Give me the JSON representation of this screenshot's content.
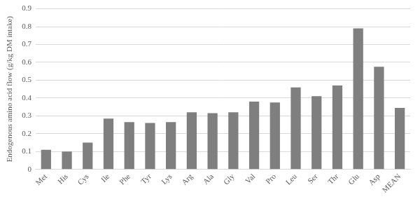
{
  "chart_data": {
    "type": "bar",
    "y_label": "Endogenous amino acid flow (g/kg DM intake)",
    "categories": [
      "Met",
      "His",
      "Cys",
      "Ile",
      "Phe",
      "Tyr",
      "Lys",
      "Arg",
      "Ala",
      "Gly",
      "Val",
      "Pro",
      "Leu",
      "Ser",
      "Thr",
      "Glu",
      "Asp",
      "MEAN"
    ],
    "values": [
      0.11,
      0.1,
      0.15,
      0.285,
      0.265,
      0.26,
      0.265,
      0.32,
      0.315,
      0.32,
      0.38,
      0.375,
      0.46,
      0.41,
      0.47,
      0.79,
      0.575,
      0.345
    ],
    "color": "#7f7f7f",
    "ylim": [
      0,
      0.9
    ],
    "yticks": [
      0,
      0.1,
      0.2,
      0.3,
      0.4,
      0.5,
      0.6,
      0.7,
      0.8,
      0.9
    ],
    "grid": true
  }
}
